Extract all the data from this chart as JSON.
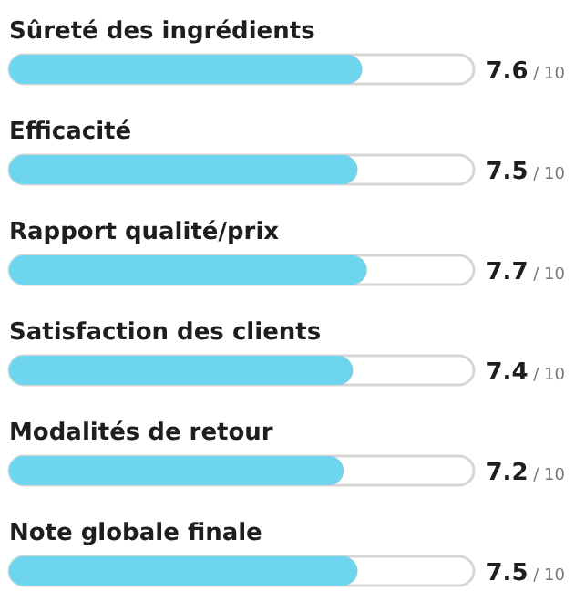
{
  "chart_data": {
    "type": "bar",
    "orientation": "horizontal",
    "categories": [
      "Sûreté des ingrédients",
      "Efficacité",
      "Rapport qualité/prix",
      "Satisfaction des clients",
      "Modalités de retour",
      "Note globale finale"
    ],
    "values": [
      7.6,
      7.5,
      7.7,
      7.4,
      7.2,
      7.5
    ],
    "data_labels": true,
    "annotations": [
      "/ 10",
      "/ 10",
      "/ 10",
      "/ 10",
      "/ 10",
      "/ 10"
    ],
    "color": "#6dd5ee",
    "xlim": [
      0,
      10
    ],
    "tick_labels": false,
    "grid": false,
    "legend": false
  }
}
